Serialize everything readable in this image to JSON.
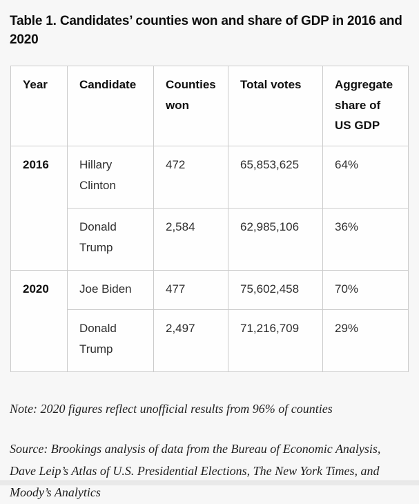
{
  "title": "Table 1. Candidates’ counties won and share of GDP in 2016 and 2020",
  "table": {
    "columns": [
      "Year",
      "Candidate",
      "Counties won",
      "Total votes",
      "Aggregate share of US GDP"
    ],
    "groups": [
      {
        "year": "2016",
        "rows": [
          {
            "candidate": "Hillary Clinton",
            "counties_won": "472",
            "total_votes": "65,853,625",
            "gdp_share": "64%"
          },
          {
            "candidate": "Donald Trump",
            "counties_won": "2,584",
            "total_votes": "62,985,106",
            "gdp_share": "36%"
          }
        ]
      },
      {
        "year": "2020",
        "rows": [
          {
            "candidate": "Joe Biden",
            "counties_won": "477",
            "total_votes": "75,602,458",
            "gdp_share": "70%"
          },
          {
            "candidate": "Donald Trump",
            "counties_won": "2,497",
            "total_votes": "71,216,709",
            "gdp_share": "29%"
          }
        ]
      }
    ]
  },
  "note": "Note: 2020 figures reflect unofficial results from 96% of counties",
  "source": "Source: Brookings analysis of data from the Bureau of Economic Analysis, Dave Leip’s Atlas of U.S. Presidential Elections, The New York Times, and Moody’s Analytics",
  "colors": {
    "page_background": "#f7f7f7",
    "cell_background": "#fefefe",
    "table_border": "#cbcbcb",
    "title_text": "#0d0d0d",
    "body_text": "#2e2e2e",
    "footnote_text": "#1f1f1f",
    "bottom_strip": "#e9e9e9"
  },
  "chart_data": {
    "type": "table",
    "title": "Table 1. Candidates’ counties won and share of GDP in 2016 and 2020",
    "columns": [
      "Year",
      "Candidate",
      "Counties won",
      "Total votes",
      "Aggregate share of US GDP"
    ],
    "rows": [
      [
        "2016",
        "Hillary Clinton",
        472,
        65853625,
        "64%"
      ],
      [
        "2016",
        "Donald Trump",
        2584,
        62985106,
        "36%"
      ],
      [
        "2020",
        "Joe Biden",
        477,
        75602458,
        "70%"
      ],
      [
        "2020",
        "Donald Trump",
        2497,
        71216709,
        "29%"
      ]
    ],
    "note": "Note: 2020 figures reflect unofficial results from 96% of counties",
    "source": "Source: Brookings analysis of data from the Bureau of Economic Analysis, Dave Leip’s Atlas of U.S. Presidential Elections, The New York Times, and Moody’s Analytics"
  }
}
